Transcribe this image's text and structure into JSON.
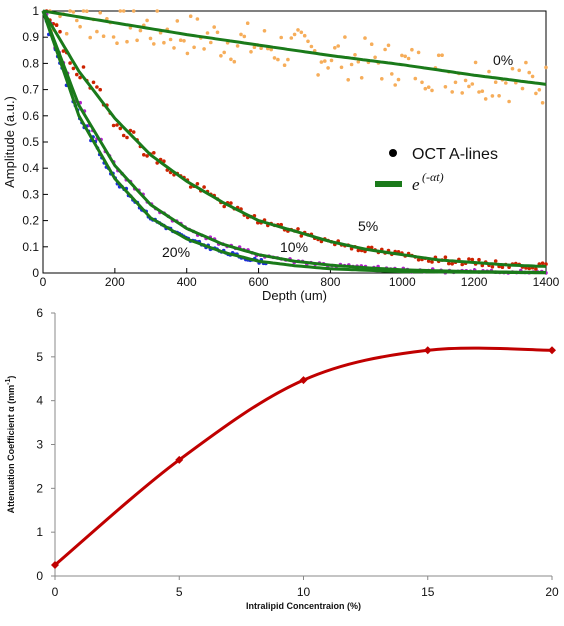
{
  "chart_data": [
    {
      "type": "scatter",
      "xlabel": "Depth (um)",
      "ylabel": "Amplitude (a.u.)",
      "xlim": [
        0,
        1400
      ],
      "ylim": [
        0,
        1
      ],
      "xticks": [
        0,
        200,
        400,
        600,
        800,
        1000,
        1200,
        1400
      ],
      "yticks": [
        0,
        0.1,
        0.2,
        0.3,
        0.4,
        0.5,
        0.6,
        0.7,
        0.8,
        0.9,
        1
      ],
      "ytick_labels": [
        "0",
        "0.1",
        "0.2",
        "0.3",
        "0.4",
        "0.5",
        "0.6",
        "0.7",
        "0.8",
        "0.9",
        "1"
      ],
      "grid": false,
      "legend": {
        "placement": "right",
        "entries": [
          {
            "label": "OCT A-lines",
            "marker": "dot",
            "color": "#000000"
          },
          {
            "label_base": "e",
            "label_exp": "(-αt)",
            "marker": "line",
            "color": "#1a7a1a"
          }
        ]
      },
      "series": [
        {
          "curve_label": "0%",
          "points_color": "#f6ad5a",
          "fit_color": "#1a7a1a",
          "x": [
            0,
            200,
            400,
            600,
            800,
            1000,
            1200,
            1400
          ],
          "y": [
            1.0,
            0.955,
            0.91,
            0.87,
            0.83,
            0.795,
            0.755,
            0.72
          ]
        },
        {
          "curve_label": "5%",
          "points_color": "#cc2200",
          "fit_color": "#1a7a1a",
          "x": [
            0,
            100,
            200,
            300,
            400,
            500,
            600,
            700,
            800,
            900,
            1000,
            1100,
            1200,
            1300,
            1400
          ],
          "y": [
            1.0,
            0.77,
            0.59,
            0.45,
            0.35,
            0.27,
            0.2,
            0.16,
            0.12,
            0.09,
            0.07,
            0.05,
            0.04,
            0.03,
            0.025
          ]
        },
        {
          "curve_label": "10%",
          "points_color": "#b020c8",
          "fit_color": "#1a7a1a",
          "x": [
            0,
            100,
            200,
            300,
            400,
            500,
            600,
            700,
            800,
            900,
            1000,
            1200,
            1400
          ],
          "y": [
            1.0,
            0.64,
            0.41,
            0.26,
            0.17,
            0.11,
            0.07,
            0.045,
            0.03,
            0.02,
            0.012,
            0.005,
            0.002
          ]
        },
        {
          "curve_label": "20%",
          "points_color": "#1c2ed8",
          "fit_color": "#1a7a1a",
          "x": [
            0,
            100,
            200,
            300,
            400,
            500,
            600,
            700,
            800,
            1000,
            1400
          ],
          "y": [
            1.0,
            0.6,
            0.36,
            0.21,
            0.13,
            0.08,
            0.045,
            0.028,
            0.016,
            0.005,
            0.001
          ]
        }
      ]
    },
    {
      "type": "line",
      "xlabel": "Intralipid Concentraion (%)",
      "ylabel": "Attenuation Coefficient α (mm",
      "ylabel_sup": "-1",
      "ylabel_close": ")",
      "xlim": [
        0,
        20
      ],
      "ylim": [
        0,
        6
      ],
      "xticks": [
        0,
        5,
        10,
        15,
        20
      ],
      "yticks": [
        0,
        1,
        2,
        3,
        4,
        5,
        6
      ],
      "grid": false,
      "color": "#c00000",
      "marker": "diamond",
      "x": [
        0,
        5,
        10,
        15,
        20
      ],
      "y": [
        0.25,
        2.65,
        4.47,
        5.15,
        5.15
      ]
    }
  ]
}
